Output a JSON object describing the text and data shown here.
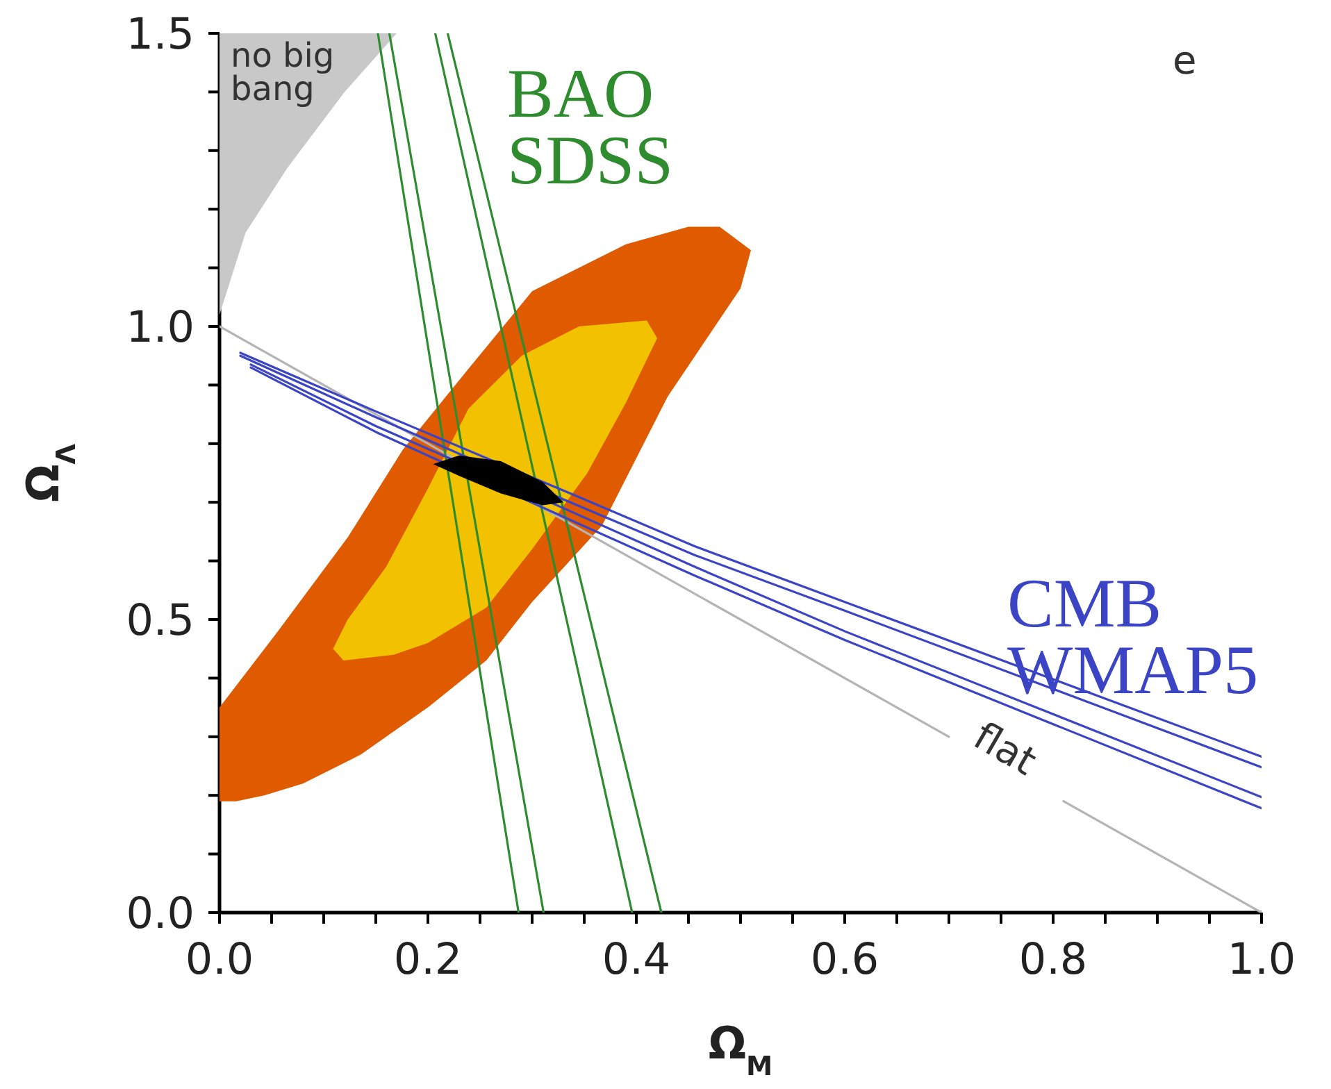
{
  "chart_data": {
    "type": "line",
    "xlabel": "Ω$_{M}$",
    "ylabel": "Ω$_{Λ}$",
    "xlim": [
      0,
      1
    ],
    "ylim": [
      0,
      1.5
    ],
    "xticks": [
      {
        "value": 0,
        "label": "0.0"
      },
      {
        "value": 0.05,
        "label": null
      },
      {
        "value": 0.1,
        "label": null
      },
      {
        "value": 0.15,
        "label": null
      },
      {
        "value": 0.2,
        "label": "0.2"
      },
      {
        "value": 0.25,
        "label": null
      },
      {
        "value": 0.3,
        "label": null
      },
      {
        "value": 0.35,
        "label": null
      },
      {
        "value": 0.4,
        "label": "0.4"
      },
      {
        "value": 0.45,
        "label": null
      },
      {
        "value": 0.5,
        "label": null
      },
      {
        "value": 0.55,
        "label": null
      },
      {
        "value": 0.6,
        "label": "0.6"
      },
      {
        "value": 0.65,
        "label": null
      },
      {
        "value": 0.7,
        "label": null
      },
      {
        "value": 0.75,
        "label": null
      },
      {
        "value": 0.8,
        "label": "0.8"
      },
      {
        "value": 0.85,
        "label": null
      },
      {
        "value": 0.9,
        "label": null
      },
      {
        "value": 0.95,
        "label": null
      },
      {
        "value": 1,
        "label": "1.0"
      }
    ],
    "yticks": [
      {
        "value": 0,
        "label": "0.0"
      },
      {
        "value": 0.1,
        "label": null
      },
      {
        "value": 0.2,
        "label": null
      },
      {
        "value": 0.3,
        "label": null
      },
      {
        "value": 0.4,
        "label": null
      },
      {
        "value": 0.5,
        "label": "0.5"
      },
      {
        "value": 0.6,
        "label": null
      },
      {
        "value": 0.7,
        "label": null
      },
      {
        "value": 0.8,
        "label": null
      },
      {
        "value": 0.9,
        "label": null
      },
      {
        "value": 1,
        "label": "1.0"
      },
      {
        "value": 1.1,
        "label": null
      },
      {
        "value": 1.2,
        "label": null
      },
      {
        "value": 1.3,
        "label": null
      },
      {
        "value": 1.4,
        "label": null
      },
      {
        "value": 1.5,
        "label": "1.5"
      }
    ],
    "series": [
      {
        "type": "area",
        "color": "#c8c8c8",
        "x": [
          0,
          0.025,
          0.065,
          0.12,
          0.17,
          0
        ],
        "values": [
          1.02,
          1.16,
          1.27,
          1.4,
          1.5,
          1.5
        ]
      },
      {
        "type": "area",
        "color": "#e05a00",
        "x": [
          0,
          0.056,
          0.123,
          0.176,
          0.24,
          0.3,
          0.39,
          0.45,
          0.48,
          0.51,
          0.5,
          0.43,
          0.367,
          0.3,
          0.256,
          0.2,
          0.136,
          0.08,
          0.043,
          0.016,
          0
        ],
        "values": [
          0.35,
          0.48,
          0.64,
          0.79,
          0.93,
          1.06,
          1.14,
          1.17,
          1.17,
          1.13,
          1.065,
          0.88,
          0.66,
          0.53,
          0.43,
          0.35,
          0.27,
          0.22,
          0.2,
          0.19,
          0.19
        ]
      },
      {
        "type": "area",
        "color": "#f2c200",
        "x": [
          0.109,
          0.123,
          0.16,
          0.199,
          0.239,
          0.29,
          0.345,
          0.41,
          0.42,
          0.39,
          0.353,
          0.3,
          0.256,
          0.2,
          0.167,
          0.119
        ],
        "values": [
          0.45,
          0.5,
          0.59,
          0.72,
          0.86,
          0.95,
          1.0,
          1.01,
          0.98,
          0.87,
          0.75,
          0.62,
          0.52,
          0.46,
          0.44,
          0.43
        ]
      },
      {
        "color": "#b4b4b4",
        "x": [
          0,
          0.7,
          null,
          0.81,
          1
        ],
        "values": [
          1,
          0.3,
          null,
          0.19,
          0
        ]
      },
      {
        "name": "BAO SDSS",
        "color": "#2e8b2e",
        "x": [
          0.152,
          0.287,
          null,
          0.163,
          0.311,
          null,
          0.207,
          0.396,
          null,
          0.219,
          0.424
        ],
        "values": [
          1.5,
          0,
          null,
          1.5,
          0,
          null,
          1.5,
          0,
          null,
          1.5,
          0
        ]
      },
      {
        "name": "CMB WMAP5",
        "color": "#3a44c4",
        "x": [
          0.02,
          0.15,
          0.33,
          0.456,
          0.6,
          1,
          null,
          0.02,
          0.15,
          0.33,
          0.456,
          0.6,
          1,
          null,
          0.03,
          0.15,
          0.33,
          0.456,
          0.6,
          1,
          null,
          0.03,
          0.15,
          0.33,
          0.456,
          0.6,
          1
        ],
        "values": [
          0.955,
          0.855,
          0.72,
          0.625,
          0.53,
          0.266,
          null,
          0.95,
          0.845,
          0.705,
          0.61,
          0.515,
          0.248,
          null,
          0.935,
          0.83,
          0.69,
          0.59,
          0.48,
          0.197,
          null,
          0.93,
          0.82,
          0.675,
          0.575,
          0.465,
          0.178
        ]
      },
      {
        "type": "area",
        "color": "#000000",
        "x": [
          0.205,
          0.23,
          0.27,
          0.31,
          0.33,
          0.31,
          0.27,
          0.23,
          0.205
        ],
        "values": [
          0.765,
          0.78,
          0.77,
          0.735,
          0.7,
          0.695,
          0.715,
          0.745,
          0.765
        ]
      }
    ],
    "annotations": [
      "no big bang",
      "e",
      "flat"
    ]
  }
}
